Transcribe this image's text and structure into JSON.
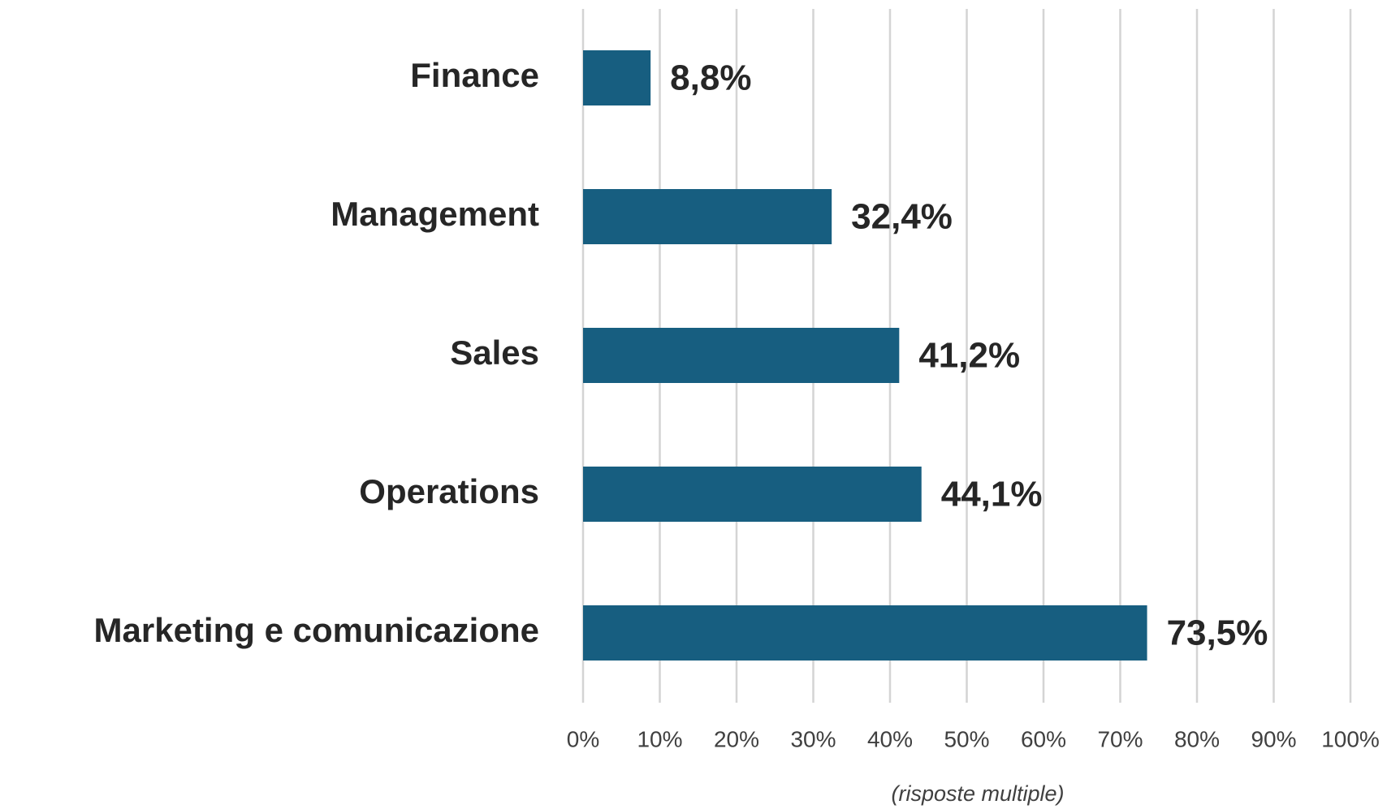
{
  "chart_data": {
    "type": "hbar",
    "categories": [
      "Finance",
      "Management",
      "Sales",
      "Operations",
      "Marketing e comunicazione"
    ],
    "values": [
      8.8,
      32.4,
      41.2,
      44.1,
      73.5
    ],
    "value_labels": [
      "8,8%",
      "32,4%",
      "41,2%",
      "44,1%",
      "73,5%"
    ],
    "color": "#175e80",
    "xlim": [
      0,
      100
    ],
    "xticks": [
      {
        "value": 0,
        "label": "0%"
      },
      {
        "value": 10,
        "label": "10%"
      },
      {
        "value": 20,
        "label": "20%"
      },
      {
        "value": 30,
        "label": "30%"
      },
      {
        "value": 40,
        "label": "40%"
      },
      {
        "value": 50,
        "label": "50%"
      },
      {
        "value": 60,
        "label": "60%"
      },
      {
        "value": 70,
        "label": "70%"
      },
      {
        "value": 80,
        "label": "80%"
      },
      {
        "value": 90,
        "label": "90%"
      },
      {
        "value": 100,
        "label": "100%"
      }
    ],
    "grid": true,
    "xlabel": "(risposte multiple)"
  }
}
